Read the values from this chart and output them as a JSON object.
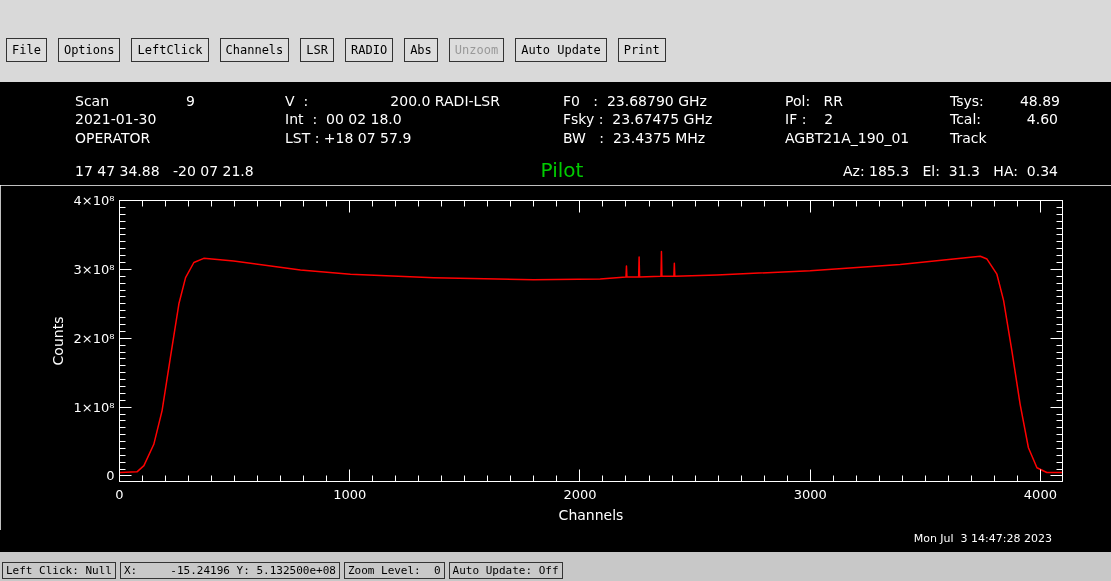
{
  "chart_data": {
    "type": "line",
    "title": "Pilot",
    "xlabel": "Channels",
    "ylabel": "Counts",
    "x": [
      0,
      4,
      76,
      106,
      149,
      185,
      221,
      258,
      287,
      323,
      366,
      496,
      786,
      1003,
      1365,
      1798,
      2088,
      2200,
      2202,
      2204,
      2255,
      2257,
      2259,
      2352,
      2354,
      2356,
      2408,
      2410,
      2412,
      2595,
      3000,
      3391,
      3739,
      3768,
      3811,
      3840,
      3876,
      3912,
      3948,
      3985,
      4028,
      4095
    ],
    "series": [
      {
        "color": "#ff0000",
        "values": [
          5000000,
          5000000,
          6000000,
          15000000,
          46000000,
          95000000,
          172000000,
          250000000,
          288000000,
          310000000,
          316000000,
          312000000,
          299000000,
          293000000,
          288000000,
          285000000,
          286000000,
          289000000,
          305000000,
          289000000,
          289000000,
          318000000,
          289000000,
          290000000,
          326000000,
          290000000,
          290000000,
          309000000,
          290000000,
          292000000,
          298000000,
          307000000,
          319000000,
          315000000,
          293000000,
          255000000,
          182000000,
          104000000,
          41000000,
          12000000,
          5000000,
          5000000
        ]
      }
    ],
    "xlim": [
      0,
      4096
    ],
    "ylim": [
      -8000000,
      400000000
    ],
    "xticks": [
      0,
      1000,
      2000,
      3000,
      4000
    ],
    "yticks": [
      0,
      {
        "value": 100000000,
        "label": "1×10⁸"
      },
      {
        "value": 200000000,
        "label": "2×10⁸"
      },
      {
        "value": 300000000,
        "label": "3×10⁸"
      },
      {
        "value": 400000000,
        "label": "4×10⁸"
      }
    ],
    "grid": false,
    "annotations": [
      "File",
      "Options",
      "LeftClick",
      "Channels",
      "LSR",
      "RADIO",
      "Abs",
      "Unzoom",
      "Auto Update",
      "Print",
      "Scan",
      "9",
      "2021-01-30",
      "OPERATOR",
      "V  :",
      "200.0 RADI-LSR",
      "Int  :  00 02 18.0",
      "LST : +18 07 57.9",
      "F0   :  23.68790 GHz",
      "Fsky :  23.67475 GHz",
      "BW   :  23.4375 MHz",
      "Pol:   RR",
      "IF :    2",
      "AGBT21A_190_01",
      "Tsys:",
      "48.89",
      "Tcal:",
      "4.60",
      "Track",
      "17 47 34.88   -20 07 21.8",
      "Az: 185.3   El:  31.3   HA:  0.34",
      "Mon Jul  3 14:47:28 2023",
      "Left Click: Null",
      "X:     -15.24196 Y: 5.132500e+08",
      "Zoom Level:  0",
      "Auto Update: Off"
    ]
  }
}
